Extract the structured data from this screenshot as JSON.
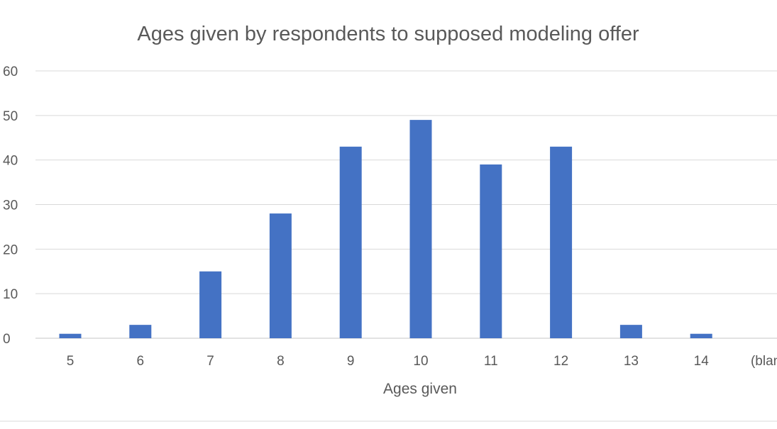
{
  "chart_data": {
    "type": "bar",
    "title": "Ages given by respondents to supposed modeling offer",
    "xlabel": "Ages given",
    "ylabel": "",
    "categories": [
      "5",
      "6",
      "7",
      "8",
      "9",
      "10",
      "11",
      "12",
      "13",
      "14",
      "(blank)"
    ],
    "values": [
      1,
      3,
      15,
      28,
      43,
      49,
      39,
      43,
      3,
      1,
      0
    ],
    "ylim": [
      0,
      60
    ],
    "yticks": [
      "0",
      "10",
      "20",
      "30",
      "40",
      "50",
      "60"
    ],
    "bar_color": "#4472c4",
    "grid": true,
    "legend": "none"
  }
}
